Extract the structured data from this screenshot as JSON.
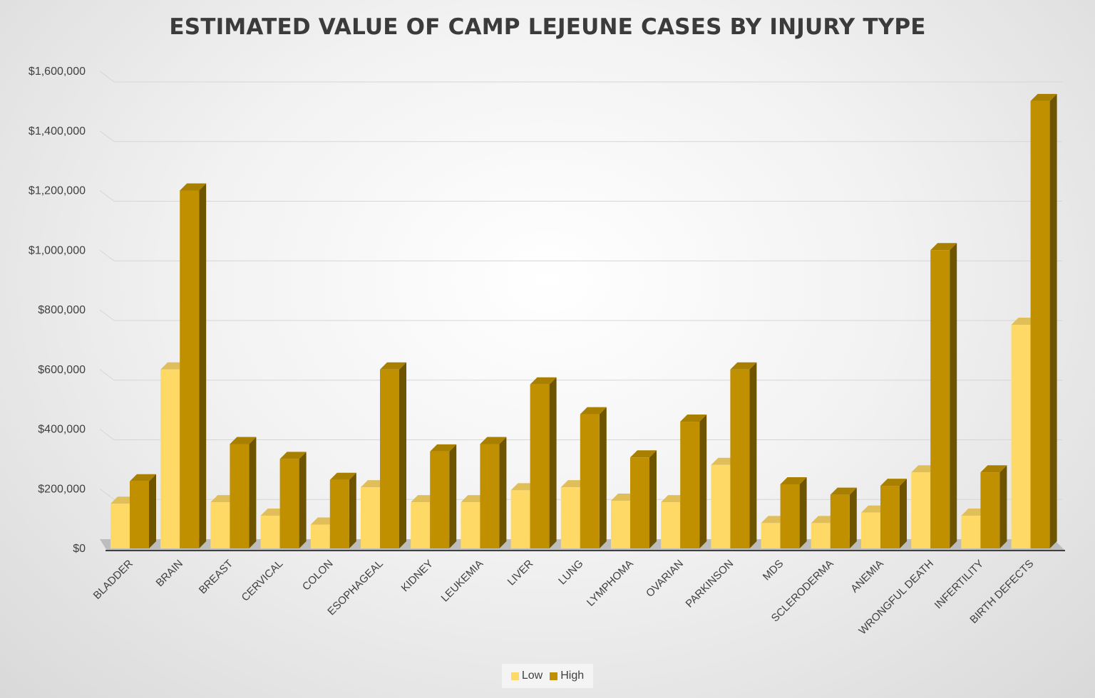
{
  "chart_data": {
    "type": "bar",
    "title": "ESTIMATED VALUE OF CAMP LEJEUNE CASES BY INJURY TYPE",
    "xlabel": "",
    "ylabel": "",
    "ylim": [
      0,
      1600000
    ],
    "y_ticks": [
      "$0",
      "$200,000",
      "$400,000",
      "$600,000",
      "$800,000",
      "$1,000,000",
      "$1,200,000",
      "$1,400,000",
      "$1,600,000"
    ],
    "grid": true,
    "legend_position": "bottom",
    "categories": [
      "BLADDER",
      "BRAIN",
      "BREAST",
      "CERVICAL",
      "COLON",
      "ESOPHAGEAL",
      "KIDNEY",
      "LEUKEMIA",
      "LIVER",
      "LUNG",
      "LYMPHOMA",
      "OVARIAN",
      "PARKINSON",
      "MDS",
      "SCLERODERMA",
      "ANEMIA",
      "WRONGFUL DEATH",
      "INFERTILITY",
      "BIRTH DEFECTS"
    ],
    "series": [
      {
        "name": "Low",
        "color": "#FFD966",
        "values": [
          150000,
          600000,
          155000,
          110000,
          80000,
          205000,
          155000,
          155000,
          195000,
          205000,
          160000,
          155000,
          280000,
          85000,
          85000,
          120000,
          255000,
          110000,
          750000
        ]
      },
      {
        "name": "High",
        "color": "#C09000",
        "values": [
          225000,
          1200000,
          350000,
          300000,
          230000,
          600000,
          325000,
          350000,
          550000,
          450000,
          305000,
          425000,
          600000,
          215000,
          180000,
          210000,
          1000000,
          255000,
          1500000
        ]
      }
    ]
  }
}
